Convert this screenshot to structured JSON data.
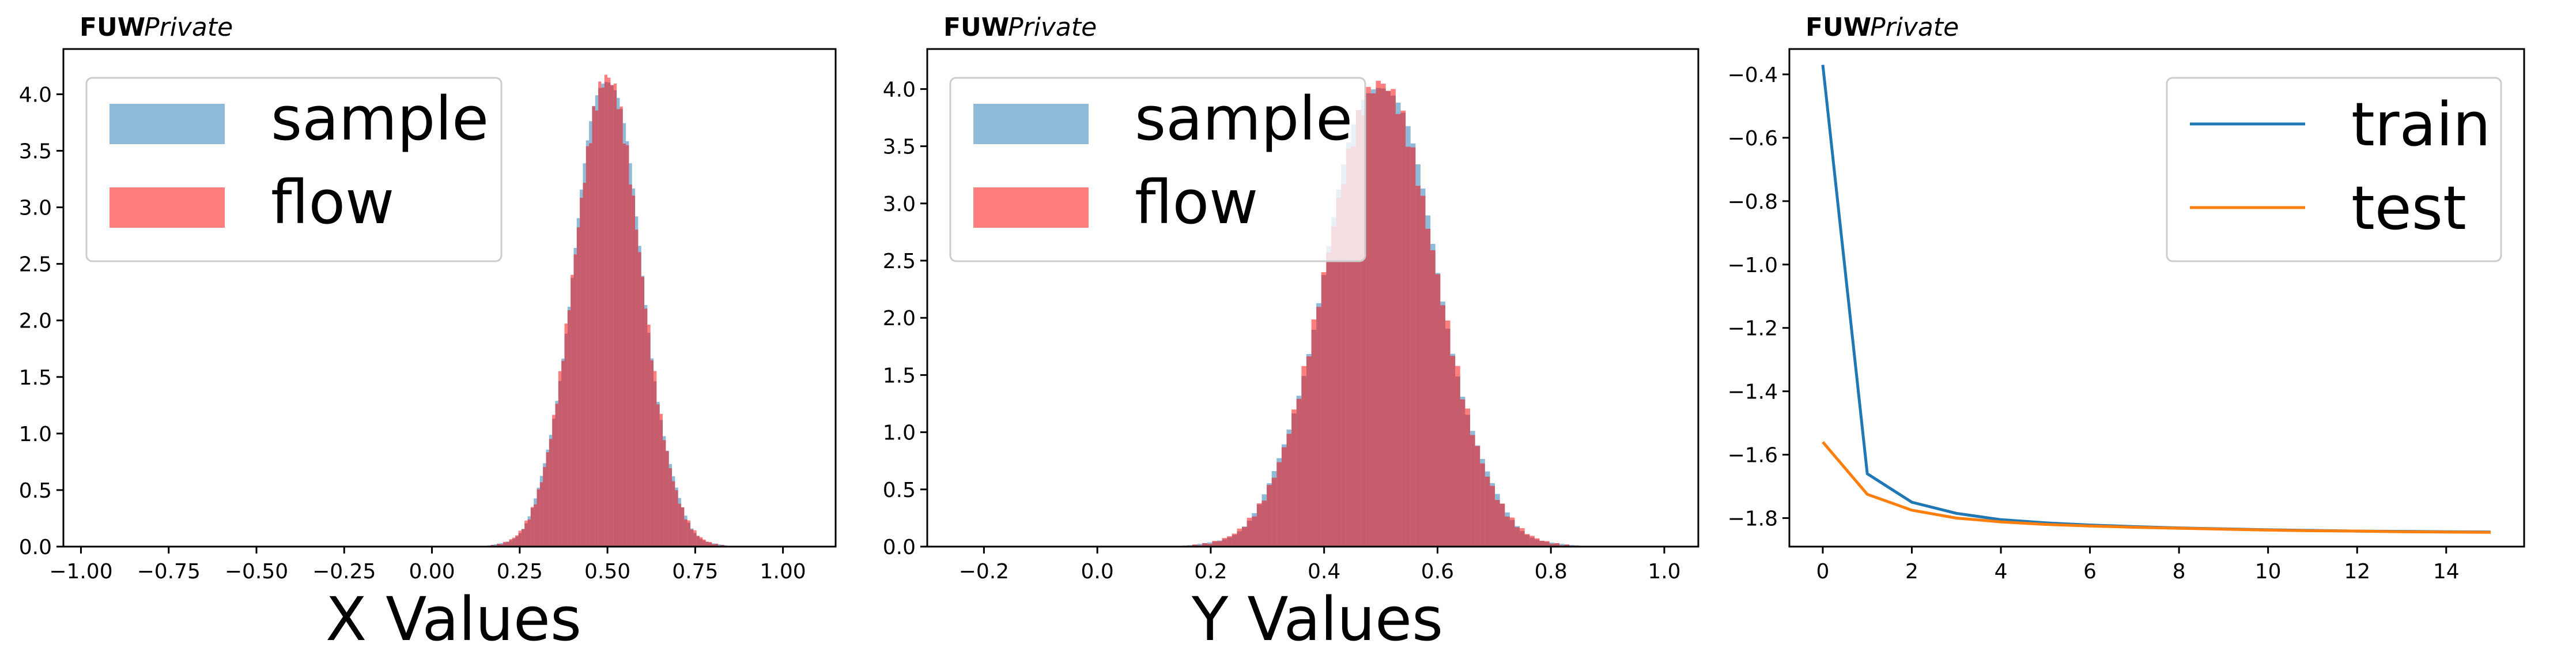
{
  "figure": {
    "panels": [
      {
        "brand": "FUW",
        "tag": "Private"
      },
      {
        "brand": "FUW",
        "tag": "Private"
      },
      {
        "brand": "FUW",
        "tag": "Private"
      }
    ]
  },
  "chart_data": [
    {
      "type": "bar",
      "subtype": "histogram",
      "xlabel": "X Values",
      "ylabel": "",
      "xlim": [
        -1.05,
        1.15
      ],
      "ylim": [
        0,
        4.4
      ],
      "xticks": [
        -1.0,
        -0.75,
        -0.5,
        -0.25,
        0.0,
        0.25,
        0.5,
        0.75,
        1.0
      ],
      "xtick_labels": [
        "−1.00",
        "−0.75",
        "−0.50",
        "−0.25",
        "0.00",
        "0.25",
        "0.50",
        "0.75",
        "1.00"
      ],
      "yticks": [
        0.0,
        0.5,
        1.0,
        1.5,
        2.0,
        2.5,
        3.0,
        3.5,
        4.0
      ],
      "ytick_labels": [
        "0.0",
        "0.5",
        "1.0",
        "1.5",
        "2.0",
        "2.5",
        "3.0",
        "3.5",
        "4.0"
      ],
      "legend": {
        "position": "upper-left"
      },
      "series": [
        {
          "name": "sample",
          "color": "#1f77b4",
          "alpha": 0.5,
          "mean": 0.5,
          "std": 0.095,
          "range": [
            0.15,
            0.85
          ],
          "bins": 80,
          "peak": 4.2
        },
        {
          "name": "flow",
          "color": "#ff0000",
          "alpha": 0.5,
          "mean": 0.5,
          "std": 0.095,
          "range": [
            0.15,
            0.85
          ],
          "bins": 80,
          "peak": 4.15
        }
      ]
    },
    {
      "type": "bar",
      "subtype": "histogram",
      "xlabel": "Y Values",
      "ylabel": "",
      "xlim": [
        -0.3,
        1.06
      ],
      "ylim": [
        0,
        4.35
      ],
      "xticks": [
        -0.2,
        0.0,
        0.2,
        0.4,
        0.6,
        0.8,
        1.0
      ],
      "xtick_labels": [
        "−0.2",
        "0.0",
        "0.2",
        "0.4",
        "0.6",
        "0.8",
        "1.0"
      ],
      "yticks": [
        0.0,
        0.5,
        1.0,
        1.5,
        2.0,
        2.5,
        3.0,
        3.5,
        4.0
      ],
      "ytick_labels": [
        "0.0",
        "0.5",
        "1.0",
        "1.5",
        "2.0",
        "2.5",
        "3.0",
        "3.5",
        "4.0"
      ],
      "legend": {
        "position": "upper-left"
      },
      "series": [
        {
          "name": "sample",
          "color": "#1f77b4",
          "alpha": 0.5,
          "mean": 0.5,
          "std": 0.097,
          "range": [
            0.15,
            0.85
          ],
          "bins": 80,
          "peak": 4.1
        },
        {
          "name": "flow",
          "color": "#ff0000",
          "alpha": 0.5,
          "mean": 0.5,
          "std": 0.097,
          "range": [
            0.15,
            0.85
          ],
          "bins": 80,
          "peak": 4.05
        }
      ]
    },
    {
      "type": "line",
      "xlabel": "",
      "ylabel": "",
      "xlim": [
        -0.75,
        15.75
      ],
      "ylim": [
        -1.89,
        -0.32
      ],
      "xticks": [
        0,
        2,
        4,
        6,
        8,
        10,
        12,
        14
      ],
      "xtick_labels": [
        "0",
        "2",
        "4",
        "6",
        "8",
        "10",
        "12",
        "14"
      ],
      "yticks": [
        -1.8,
        -1.6,
        -1.4,
        -1.2,
        -1.0,
        -0.8,
        -0.6,
        -0.4
      ],
      "ytick_labels": [
        "−1.8",
        "−1.6",
        "−1.4",
        "−1.2",
        "−1.0",
        "−0.8",
        "−0.6",
        "−0.4"
      ],
      "legend": {
        "position": "upper-right"
      },
      "x": [
        0,
        1,
        2,
        3,
        4,
        5,
        6,
        7,
        8,
        9,
        10,
        11,
        12,
        13,
        14,
        15
      ],
      "series": [
        {
          "name": "train",
          "color": "#1f77b4",
          "values": [
            -0.37,
            -1.66,
            -1.75,
            -1.785,
            -1.805,
            -1.815,
            -1.822,
            -1.827,
            -1.831,
            -1.834,
            -1.837,
            -1.839,
            -1.841,
            -1.842,
            -1.843,
            -1.844
          ]
        },
        {
          "name": "test",
          "color": "#ff7f0e",
          "values": [
            -1.56,
            -1.725,
            -1.775,
            -1.8,
            -1.812,
            -1.82,
            -1.825,
            -1.829,
            -1.832,
            -1.835,
            -1.838,
            -1.84,
            -1.841,
            -1.843,
            -1.844,
            -1.845
          ]
        }
      ]
    }
  ]
}
